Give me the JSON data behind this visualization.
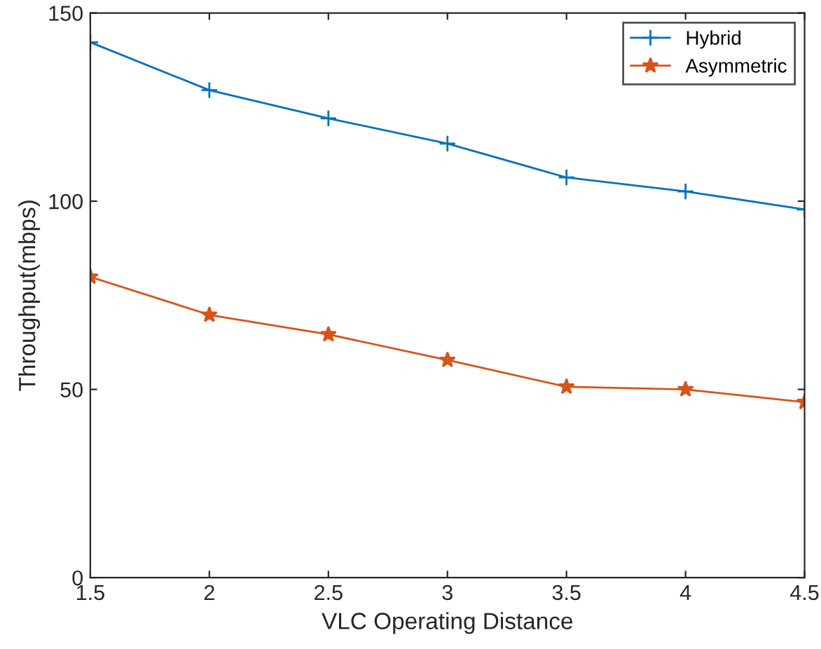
{
  "chart_data": {
    "type": "line",
    "xlabel": "VLC Operating Distance",
    "ylabel": "Throughput(mbps)",
    "x": [
      1.5,
      2,
      2.5,
      3,
      3.5,
      4,
      4.5
    ],
    "series": [
      {
        "name": "Hybrid",
        "color": "#0072bd",
        "marker": "cross",
        "values": [
          142.2,
          129.5,
          122,
          115.3,
          106.3,
          102.6,
          97.8
        ]
      },
      {
        "name": "Asymmetric",
        "color": "#d95319",
        "marker": "star",
        "values": [
          79.9,
          69.8,
          64.6,
          57.8,
          50.7,
          50,
          46.6
        ]
      }
    ],
    "xlim": [
      1.5,
      4.5
    ],
    "xticks": [
      1.5,
      2,
      2.5,
      3,
      3.5,
      4,
      4.5
    ],
    "ylim": [
      0,
      150
    ],
    "yticks": [
      0,
      50,
      100,
      150
    ],
    "grid": false,
    "legend": "top right",
    "line_style": "solid"
  }
}
